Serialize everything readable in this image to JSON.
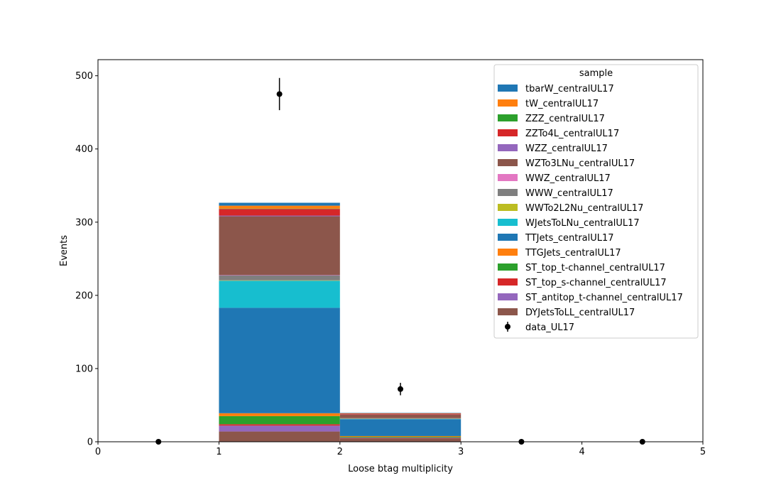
{
  "chart_data": {
    "type": "bar",
    "stacked": true,
    "xlabel": "Loose btag multiplicity",
    "ylabel": "Events",
    "xlim": [
      0,
      5
    ],
    "ylim": [
      0,
      522
    ],
    "x_ticks": [
      "0",
      "1",
      "2",
      "3",
      "4",
      "5"
    ],
    "y_ticks": [
      "0",
      "100",
      "200",
      "300",
      "400",
      "500"
    ],
    "y_tick_values": [
      0,
      100,
      200,
      300,
      400,
      500
    ],
    "bins": [
      [
        0,
        1
      ],
      [
        1,
        2
      ],
      [
        2,
        3
      ],
      [
        3,
        4
      ],
      [
        4,
        5
      ]
    ],
    "grid": false,
    "legend": {
      "title": "sample",
      "position": "top-right"
    },
    "series": [
      {
        "name": "DYJetsToLL_centralUL17",
        "color": "#8c564b",
        "values": [
          0,
          14,
          5,
          0,
          0
        ]
      },
      {
        "name": "ST_antitop_t-channel_centralUL17",
        "color": "#9467bd",
        "values": [
          0,
          8,
          0.5,
          0,
          0
        ]
      },
      {
        "name": "ST_top_s-channel_centralUL17",
        "color": "#d62728",
        "values": [
          0,
          2,
          0.3,
          0,
          0
        ]
      },
      {
        "name": "ST_top_t-channel_centralUL17",
        "color": "#2ca02c",
        "values": [
          0,
          11,
          1,
          0,
          0
        ]
      },
      {
        "name": "TTGJets_centralUL17",
        "color": "#ff7f0e",
        "values": [
          0,
          4,
          1,
          0,
          0
        ]
      },
      {
        "name": "TTJets_centralUL17",
        "color": "#1f77b4",
        "values": [
          0,
          144,
          23,
          0,
          0
        ]
      },
      {
        "name": "WJetsToLNu_centralUL17",
        "color": "#17becf",
        "values": [
          0,
          37,
          0.5,
          0,
          0
        ]
      },
      {
        "name": "WWTo2L2Nu_centralUL17",
        "color": "#bcbd22",
        "values": [
          0,
          0.5,
          0.2,
          0,
          0
        ]
      },
      {
        "name": "WWW_centralUL17",
        "color": "#7f7f7f",
        "values": [
          0,
          7,
          0.5,
          0,
          0
        ]
      },
      {
        "name": "WWZ_centralUL17",
        "color": "#e377c2",
        "values": [
          0,
          0.5,
          0.2,
          0,
          0
        ]
      },
      {
        "name": "WZTo3LNu_centralUL17",
        "color": "#8c564b",
        "values": [
          0,
          80,
          5,
          0,
          0
        ]
      },
      {
        "name": "WZZ_centralUL17",
        "color": "#9467bd",
        "values": [
          0,
          1,
          0.2,
          0,
          0
        ]
      },
      {
        "name": "ZZTo4L_centralUL17",
        "color": "#d62728",
        "values": [
          0,
          9,
          1,
          0,
          0
        ]
      },
      {
        "name": "ZZZ_centralUL17",
        "color": "#2ca02c",
        "values": [
          0,
          0.5,
          0.1,
          0,
          0
        ]
      },
      {
        "name": "tW_centralUL17",
        "color": "#ff7f0e",
        "values": [
          0,
          4,
          0.5,
          0,
          0
        ]
      },
      {
        "name": "tbarW_centralUL17",
        "color": "#1f77b4",
        "values": [
          0,
          4,
          0.5,
          0,
          0
        ]
      }
    ],
    "legend_entries": [
      {
        "name": "tbarW_centralUL17",
        "color": "#1f77b4"
      },
      {
        "name": "tW_centralUL17",
        "color": "#ff7f0e"
      },
      {
        "name": "ZZZ_centralUL17",
        "color": "#2ca02c"
      },
      {
        "name": "ZZTo4L_centralUL17",
        "color": "#d62728"
      },
      {
        "name": "WZZ_centralUL17",
        "color": "#9467bd"
      },
      {
        "name": "WZTo3LNu_centralUL17",
        "color": "#8c564b"
      },
      {
        "name": "WWZ_centralUL17",
        "color": "#e377c2"
      },
      {
        "name": "WWW_centralUL17",
        "color": "#7f7f7f"
      },
      {
        "name": "WWTo2L2Nu_centralUL17",
        "color": "#bcbd22"
      },
      {
        "name": "WJetsToLNu_centralUL17",
        "color": "#17becf"
      },
      {
        "name": "TTJets_centralUL17",
        "color": "#1f77b4"
      },
      {
        "name": "TTGJets_centralUL17",
        "color": "#ff7f0e"
      },
      {
        "name": "ST_top_t-channel_centralUL17",
        "color": "#2ca02c"
      },
      {
        "name": "ST_top_s-channel_centralUL17",
        "color": "#d62728"
      },
      {
        "name": "ST_antitop_t-channel_centralUL17",
        "color": "#9467bd"
      },
      {
        "name": "DYJetsToLL_centralUL17",
        "color": "#8c564b"
      }
    ],
    "data": {
      "name": "data_UL17",
      "color": "#000000",
      "x": [
        0.5,
        1.5,
        2.5,
        3.5,
        4.5
      ],
      "y": [
        0,
        475,
        72,
        0,
        0
      ],
      "yerr": [
        0,
        22,
        8.5,
        0,
        0
      ]
    }
  }
}
